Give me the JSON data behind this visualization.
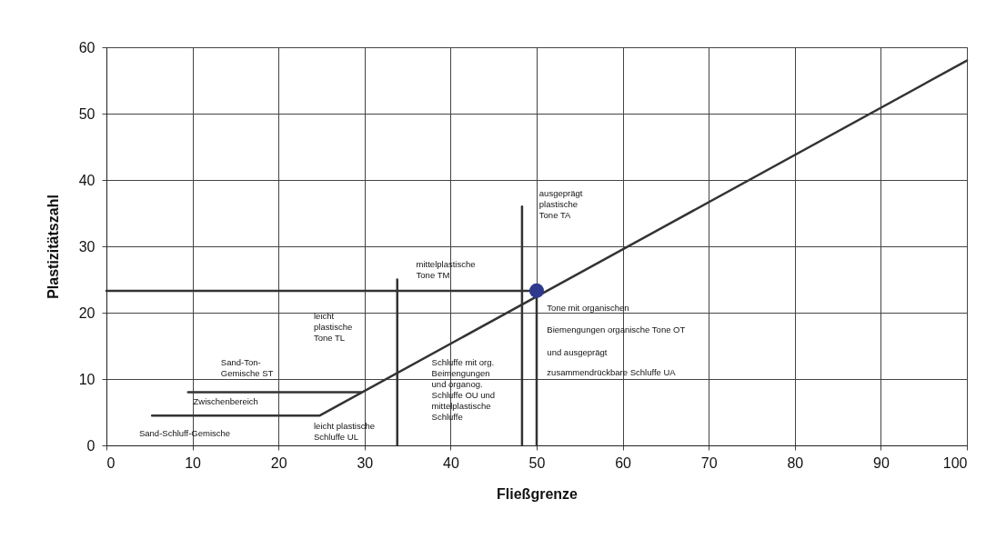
{
  "chart_data": {
    "type": "line",
    "xlabel": "Fließgrenze",
    "ylabel": "Plastizitätszahl",
    "xlim": [
      0,
      100
    ],
    "xticks": [
      0,
      10,
      20,
      30,
      40,
      50,
      60,
      70,
      80,
      90,
      100
    ],
    "ylim": [
      0,
      60
    ],
    "yticks": [
      0,
      10,
      20,
      30,
      40,
      50,
      60
    ],
    "grid": true,
    "line_style": "solid",
    "marker": "none",
    "series": [
      {
        "color": "#333333",
        "x": [
          5.3,
          24.8,
          100
        ],
        "values": [
          4.5,
          4.5,
          58
        ]
      },
      {
        "color": "#333333",
        "x": [
          9.5,
          29.6
        ],
        "values": [
          8,
          8
        ]
      },
      {
        "color": "#333333",
        "x": [
          0,
          50
        ],
        "values": [
          23.3,
          23.3
        ]
      },
      {
        "color": "#333333",
        "x": [
          33.8,
          33.8
        ],
        "values": [
          0,
          25
        ]
      },
      {
        "color": "#333333",
        "x": [
          48.3,
          48.3
        ],
        "values": [
          0,
          36
        ]
      },
      {
        "color": "#333333",
        "x": [
          50,
          50
        ],
        "values": [
          0,
          23.3
        ]
      },
      {
        "type": "scatter",
        "marker": "circle",
        "color": "#2e3a8c",
        "x": [
          50
        ],
        "values": [
          23.3
        ]
      }
    ],
    "annotations": [
      "Sand-Schluff-Gemische",
      "Zwischenbereich",
      "Sand-Ton-\nGemische ST",
      "leicht\nplastische\nTone TL",
      "leicht plastische\nSchluffe UL",
      "mittelplastische\nTone TM",
      "ausgeprägt\nplastische\nTone TA",
      "Schluffe mit org.\nBeimengungen\nund organog.\nSchluffe OU und\nmittelplastische\nSchluffe",
      "Tone mit organischen",
      "Biemengungen organische Tone OT",
      "und ausgeprägt",
      "zusammendrückbare Schluffe UA"
    ]
  }
}
